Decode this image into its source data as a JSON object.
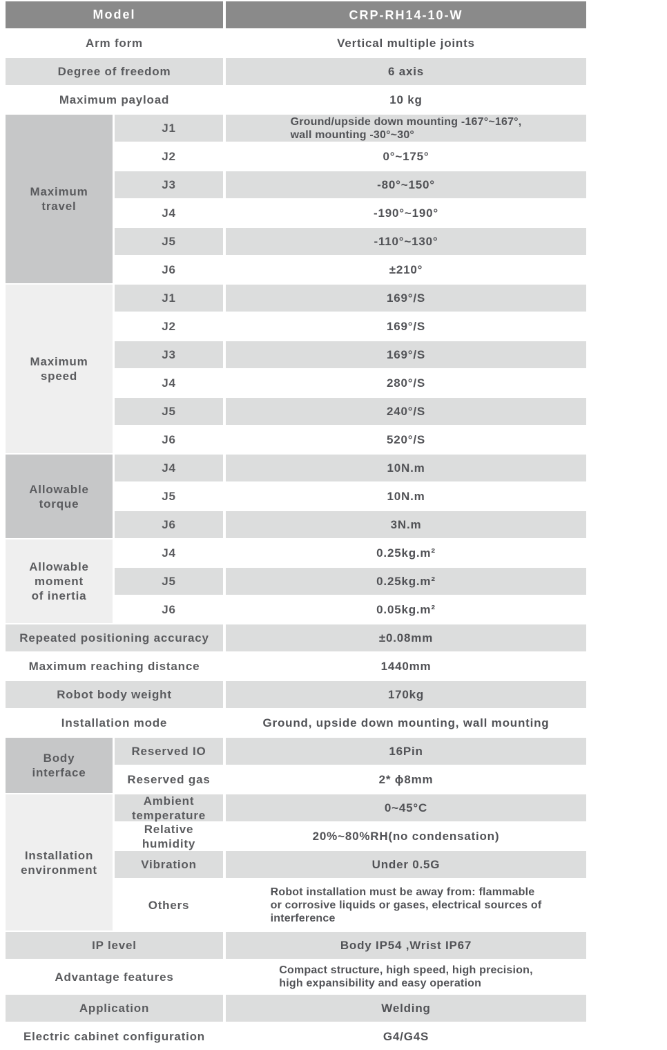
{
  "colors": {
    "header_bg": "#8a8a8a",
    "header_text": "#ffffff",
    "row_gray": "#dcdddd",
    "row_white": "#ffffff",
    "group_dark": "#c6c7c8",
    "group_light": "#efefef",
    "text": "#5a5b5e"
  },
  "table": {
    "header": {
      "label": "Model",
      "value": "CRP-RH14-10-W"
    },
    "rows_top": [
      {
        "label": "Arm form",
        "value": "Vertical multiple joints"
      },
      {
        "label": "Degree of freedom",
        "value": "6 axis"
      },
      {
        "label": "Maximum payload",
        "value": "10 kg"
      }
    ],
    "max_travel": {
      "group": "Maximum\ntravel",
      "rows": [
        {
          "label": "J1",
          "value": "Ground/upside down mounting -167°~167°,\nwall mounting -30°~30°"
        },
        {
          "label": "J2",
          "value": "0°~175°"
        },
        {
          "label": "J3",
          "value": "-80°~150°"
        },
        {
          "label": "J4",
          "value": "-190°~190°"
        },
        {
          "label": "J5",
          "value": "-110°~130°"
        },
        {
          "label": "J6",
          "value": "±210°"
        }
      ]
    },
    "max_speed": {
      "group": "Maximum\nspeed",
      "rows": [
        {
          "label": "J1",
          "value": "169°/S"
        },
        {
          "label": "J2",
          "value": "169°/S"
        },
        {
          "label": "J3",
          "value": "169°/S"
        },
        {
          "label": "J4",
          "value": "280°/S"
        },
        {
          "label": "J5",
          "value": "240°/S"
        },
        {
          "label": "J6",
          "value": "520°/S"
        }
      ]
    },
    "torque": {
      "group": "Allowable\ntorque",
      "rows": [
        {
          "label": "J4",
          "value": "10N.m"
        },
        {
          "label": "J5",
          "value": "10N.m"
        },
        {
          "label": "J6",
          "value": "3N.m"
        }
      ]
    },
    "inertia": {
      "group": "Allowable\nmoment\nof inertia",
      "rows": [
        {
          "label": "J4",
          "value": "0.25kg.m²"
        },
        {
          "label": "J5",
          "value": "0.25kg.m²"
        },
        {
          "label": "J6",
          "value": "0.05kg.m²"
        }
      ]
    },
    "rows_mid": [
      {
        "label": "Repeated positioning accuracy",
        "value": "±0.08mm"
      },
      {
        "label": "Maximum reaching distance",
        "value": "1440mm"
      },
      {
        "label": "Robot body weight",
        "value": "170kg"
      },
      {
        "label": "Installation mode",
        "value": "Ground, upside down mounting, wall mounting"
      }
    ],
    "body_interface": {
      "group": "Body\ninterface",
      "rows": [
        {
          "label": "Reserved IO",
          "value": "16Pin"
        },
        {
          "label": "Reserved gas",
          "value": "2* ϕ8mm"
        }
      ]
    },
    "environment": {
      "group": "Installation\nenvironment",
      "rows": [
        {
          "label": "Ambient\ntemperature",
          "value": "0~45°C"
        },
        {
          "label": "Relative\nhumidity",
          "value": "20%~80%RH(no condensation)"
        },
        {
          "label": "Vibration",
          "value": "Under 0.5G"
        },
        {
          "label": "Others",
          "value": "Robot installation must be away from: flammable\nor corrosive liquids or gases, electrical sources of\ninterference"
        }
      ]
    },
    "rows_bottom": [
      {
        "label": "IP level",
        "value": "Body IP54 ,Wrist IP67"
      },
      {
        "label": "Advantage features",
        "value": "Compact structure, high speed, high precision,\nhigh expansibility and easy operation"
      },
      {
        "label": "Application",
        "value": "Welding"
      },
      {
        "label": "Electric cabinet configuration",
        "value": "G4/G4S"
      }
    ]
  }
}
